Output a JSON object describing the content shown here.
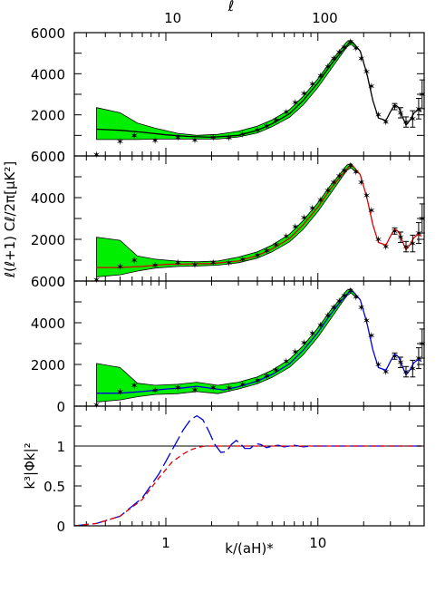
{
  "chart_data": [
    {
      "type": "line",
      "panel": "top",
      "top_axis": {
        "title": "ℓ",
        "ticks": [
          {
            "value": 10,
            "label": "10"
          },
          {
            "value": 100,
            "label": "100"
          }
        ]
      },
      "ylim": [
        0,
        6000
      ],
      "yticks": [
        "6000",
        "4000",
        "2000",
        "0"
      ],
      "band_color": "#00ee00",
      "curve_color": "#000000",
      "band": {
        "x": [
          0.35,
          0.5,
          0.65,
          0.85,
          1.2,
          1.6,
          2.2,
          3,
          4,
          5,
          6.5,
          8,
          10,
          12,
          14,
          15.5,
          16.5,
          18
        ],
        "upper": [
          2350,
          2100,
          1600,
          1350,
          1100,
          1000,
          1050,
          1200,
          1450,
          1750,
          2250,
          2900,
          3750,
          4550,
          5150,
          5560,
          5640,
          5300
        ],
        "lower": [
          800,
          800,
          800,
          820,
          820,
          820,
          820,
          920,
          1120,
          1420,
          1880,
          2480,
          3330,
          4150,
          4850,
          5300,
          5440,
          5200
        ]
      },
      "curve": {
        "x": [
          0.35,
          0.5,
          0.7,
          1,
          1.4,
          2,
          3,
          4,
          5,
          6.5,
          8,
          10,
          12,
          14,
          16,
          17,
          19,
          21,
          23,
          25,
          28,
          30,
          32,
          34,
          36,
          38,
          40,
          43,
          46,
          48
        ],
        "y": [
          1300,
          1250,
          1150,
          1030,
          950,
          910,
          1000,
          1250,
          1560,
          2050,
          2700,
          3550,
          4380,
          5000,
          5480,
          5520,
          5100,
          4000,
          2700,
          1850,
          1720,
          2150,
          2500,
          2350,
          1900,
          1500,
          1700,
          2100,
          2250,
          2150
        ]
      }
    },
    {
      "type": "line",
      "panel": "middle",
      "ylabel": "ℓ(ℓ+1) Cℓ/2π[μK²]",
      "ylim": [
        0,
        6000
      ],
      "yticks": [
        "6000",
        "4000",
        "2000",
        "0"
      ],
      "band_color": "#00ee00",
      "curve_color": "#dd0000",
      "band": {
        "x": [
          0.35,
          0.5,
          0.65,
          0.85,
          1.2,
          1.6,
          2.2,
          3,
          4,
          5,
          6.5,
          8,
          10,
          12,
          14,
          15.5,
          16.5,
          18
        ],
        "upper": [
          2100,
          1950,
          1200,
          1050,
          950,
          920,
          960,
          1150,
          1400,
          1720,
          2250,
          2900,
          3750,
          4550,
          5150,
          5560,
          5640,
          5300
        ],
        "lower": [
          200,
          300,
          480,
          620,
          700,
          720,
          760,
          880,
          1100,
          1400,
          1880,
          2480,
          3330,
          4150,
          4850,
          5300,
          5440,
          5200
        ]
      },
      "curve": {
        "x": [
          0.35,
          0.5,
          0.7,
          1,
          1.4,
          2,
          3,
          4,
          5,
          6.5,
          8,
          10,
          12,
          14,
          16,
          17,
          19,
          21,
          23,
          25,
          28,
          30,
          32,
          34,
          36,
          38,
          40,
          43,
          46,
          48
        ],
        "y": [
          650,
          650,
          700,
          800,
          820,
          840,
          960,
          1220,
          1540,
          2040,
          2690,
          3540,
          4370,
          5000,
          5480,
          5520,
          5100,
          4000,
          2700,
          1850,
          1720,
          2150,
          2500,
          2350,
          1900,
          1500,
          1700,
          2100,
          2250,
          2150
        ]
      }
    },
    {
      "type": "line",
      "panel": "bottom-cl",
      "ylim": [
        0,
        6000
      ],
      "yticks": [
        "6000",
        "4000",
        "2000",
        "0"
      ],
      "band_color": "#00ee00",
      "curve_color": "#0000dd",
      "band": {
        "x": [
          0.35,
          0.5,
          0.65,
          0.85,
          1.2,
          1.6,
          2.2,
          3,
          4,
          5,
          6.5,
          8,
          10,
          12,
          14,
          15.5,
          16.5,
          18
        ],
        "upper": [
          2050,
          1850,
          1100,
          1000,
          1050,
          1150,
          1000,
          1150,
          1400,
          1720,
          2250,
          2900,
          3750,
          4550,
          5150,
          5560,
          5640,
          5300
        ],
        "lower": [
          200,
          300,
          450,
          560,
          600,
          700,
          600,
          820,
          1080,
          1380,
          1860,
          2460,
          3310,
          4130,
          4840,
          5290,
          5430,
          5200
        ]
      },
      "curve": {
        "x": [
          0.35,
          0.5,
          0.7,
          1,
          1.3,
          1.6,
          2,
          2.4,
          3,
          4,
          5,
          6.5,
          8,
          10,
          12,
          14,
          16,
          17,
          19,
          21,
          23,
          25,
          28,
          30,
          32,
          34,
          36,
          38,
          40,
          43,
          46,
          48
        ],
        "y": [
          620,
          620,
          700,
          820,
          880,
          950,
          850,
          780,
          930,
          1200,
          1520,
          2030,
          2680,
          3530,
          4360,
          4990,
          5470,
          5510,
          5100,
          4000,
          2700,
          1850,
          1720,
          2150,
          2500,
          2350,
          1900,
          1500,
          1700,
          2100,
          2250,
          2150
        ]
      }
    },
    {
      "type": "line",
      "panel": "transfer",
      "xlabel": "k/(aH)*",
      "ylabel": "k³|Φk|²",
      "ylim": [
        0,
        1.5
      ],
      "yticks": [
        "1",
        "0.5",
        "0"
      ],
      "xticks": [
        "1",
        "10"
      ],
      "hline": {
        "y": 1,
        "color": "#000000"
      },
      "series": [
        {
          "color": "#0000dd",
          "dash": "long",
          "x": [
            0.25,
            0.35,
            0.5,
            0.7,
            0.9,
            1.1,
            1.3,
            1.45,
            1.6,
            1.75,
            1.9,
            2.1,
            2.3,
            2.5,
            2.7,
            2.9,
            3.1,
            3.3,
            3.6,
            3.9,
            4.2,
            4.6,
            5,
            5.5,
            6,
            6.5,
            7,
            8,
            9,
            10,
            12,
            15,
            20,
            30,
            48
          ],
          "y": [
            0.0,
            0.03,
            0.12,
            0.35,
            0.65,
            0.95,
            1.2,
            1.33,
            1.38,
            1.33,
            1.2,
            1.02,
            0.92,
            0.93,
            1.02,
            1.07,
            1.03,
            0.97,
            0.97,
            1.03,
            1.02,
            0.98,
            1.0,
            1.01,
            0.99,
            1.0,
            1.01,
            0.99,
            1.0,
            1.0,
            1.0,
            1.0,
            1.0,
            1.0,
            1.0
          ]
        },
        {
          "color": "#dd0000",
          "dash": "short",
          "x": [
            0.25,
            0.35,
            0.5,
            0.7,
            0.9,
            1.1,
            1.3,
            1.45,
            1.6,
            1.8,
            2.0,
            2.3,
            2.6,
            3,
            4,
            6,
            10,
            20,
            48
          ],
          "y": [
            0.0,
            0.03,
            0.12,
            0.33,
            0.6,
            0.8,
            0.9,
            0.95,
            0.98,
            1.0,
            1.0,
            1.0,
            1.0,
            1.0,
            1.0,
            1.0,
            1.0,
            1.0,
            1.0
          ]
        }
      ]
    }
  ],
  "data_points": {
    "x": [
      0.35,
      0.5,
      0.62,
      0.85,
      1.2,
      1.55,
      2.05,
      2.6,
      3.2,
      4,
      4.6,
      5.3,
      6.2,
      7.1,
      8.1,
      9.2,
      10.4,
      11.6,
      12.7,
      13.8,
      14.9,
      16.4,
      17.8,
      19.3,
      20.9,
      22.5,
      25,
      28,
      32,
      35,
      38,
      42,
      46,
      48.5
    ],
    "y": [
      70,
      700,
      1000,
      760,
      900,
      780,
      900,
      880,
      1050,
      1250,
      1450,
      1750,
      2150,
      2600,
      3050,
      3500,
      3900,
      4350,
      4750,
      5050,
      5300,
      5550,
      5250,
      4750,
      4100,
      3400,
      2000,
      1650,
      2400,
      2100,
      1650,
      1800,
      2300,
      3000
    ],
    "error": [
      0,
      0,
      0,
      0,
      0,
      0,
      0,
      0,
      0,
      0,
      0,
      0,
      0,
      0,
      0,
      0,
      0,
      0,
      0,
      0,
      0,
      0,
      0,
      0,
      0,
      0,
      0,
      0,
      150,
      250,
      250,
      400,
      500,
      700
    ],
    "marker": "✶"
  },
  "x_axis": {
    "scale": "log",
    "min": 0.25,
    "max": 50,
    "ell_factor": 9
  }
}
